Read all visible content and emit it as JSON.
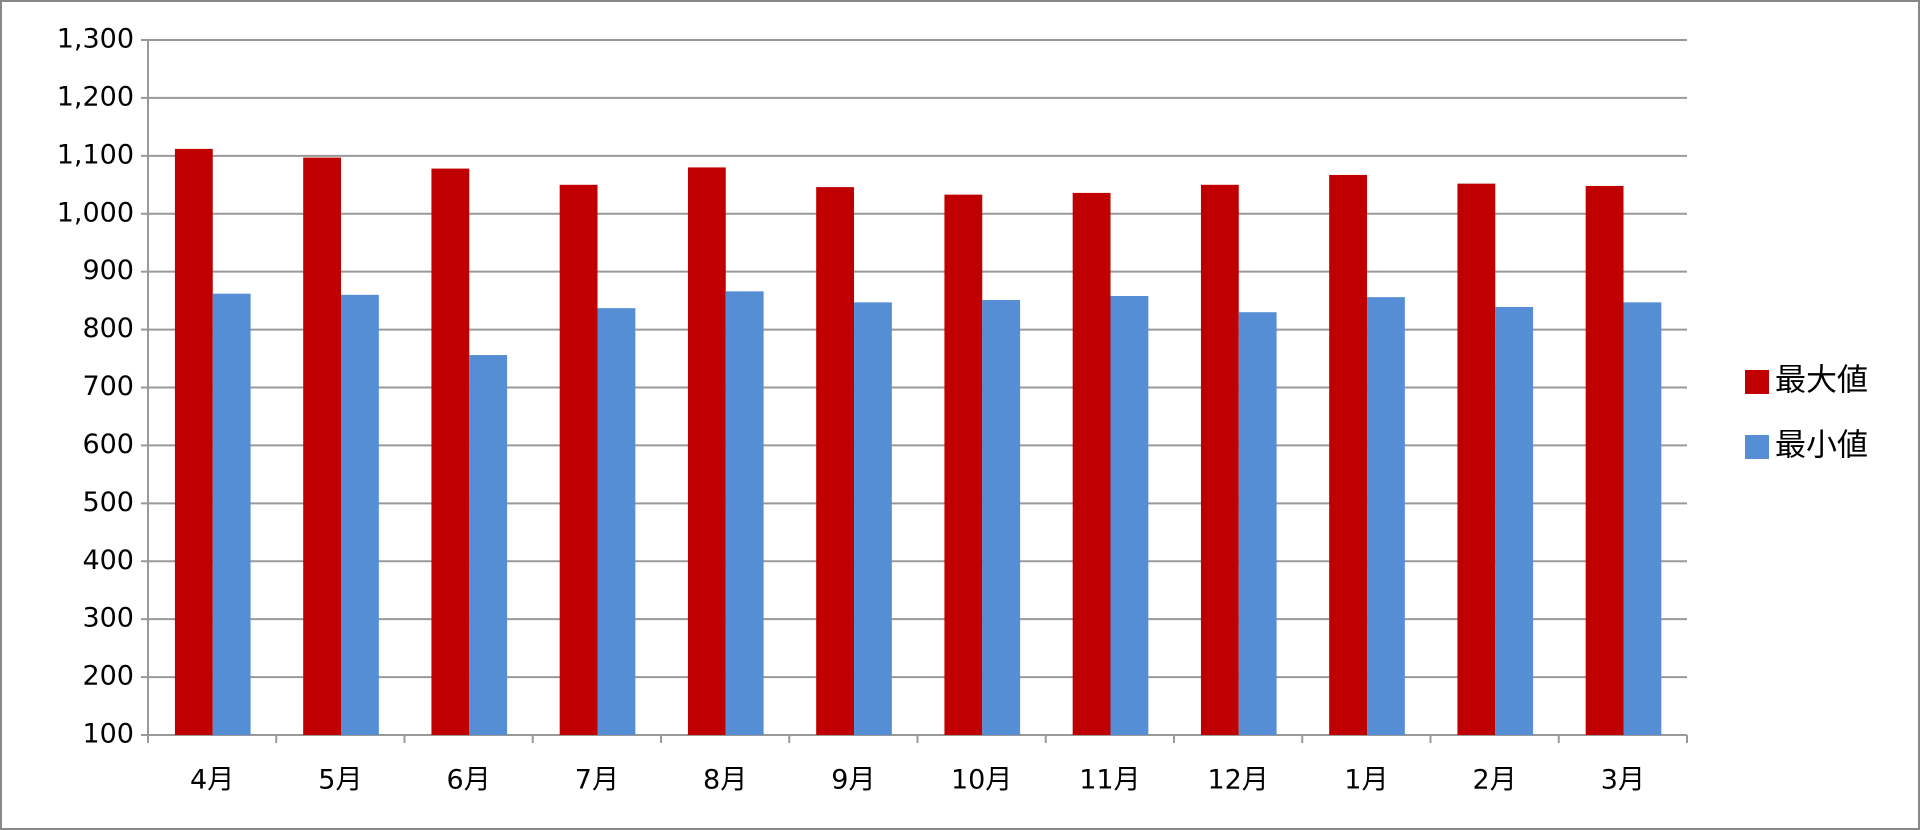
{
  "chart_data": {
    "type": "bar",
    "categories": [
      "4月",
      "5月",
      "6月",
      "7月",
      "8月",
      "9月",
      "10月",
      "11月",
      "12月",
      "1月",
      "2月",
      "3月"
    ],
    "series": [
      {
        "name": "最大値",
        "color": "#c00000",
        "values": [
          1112,
          1097,
          1078,
          1050,
          1080,
          1046,
          1033,
          1036,
          1050,
          1067,
          1052,
          1048
        ]
      },
      {
        "name": "最小値",
        "color": "#558ed5",
        "values": [
          862,
          860,
          756,
          837,
          866,
          847,
          851,
          858,
          830,
          856,
          839,
          847
        ]
      }
    ],
    "ylim": [
      100,
      1300
    ],
    "yticks": [
      100,
      200,
      300,
      400,
      500,
      600,
      700,
      800,
      900,
      {
        "value": 1000,
        "label": "1,000"
      },
      {
        "value": 1100,
        "label": "1,100"
      },
      {
        "value": 1200,
        "label": "1,200"
      },
      {
        "value": 1300,
        "label": "1,300"
      }
    ],
    "grid": true,
    "legend": "right"
  }
}
